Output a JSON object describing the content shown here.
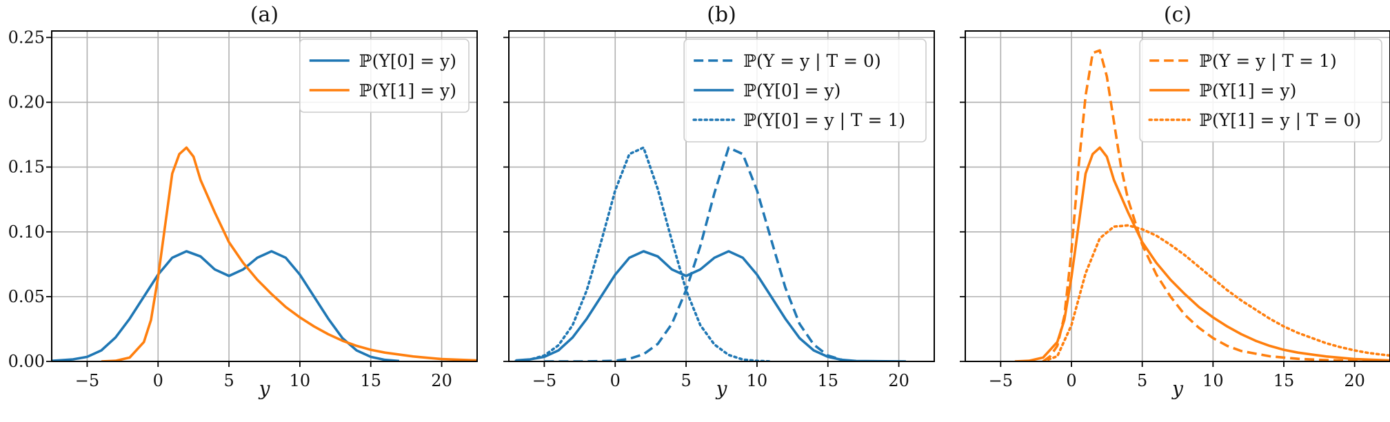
{
  "chart_data": [
    {
      "type": "line",
      "title": "(a)",
      "xlabel": "y",
      "ylabel": "",
      "xlim": [
        -7.5,
        22.5
      ],
      "ylim": [
        0,
        0.255
      ],
      "x_ticks": [
        -5,
        0,
        5,
        10,
        15,
        20
      ],
      "x_tick_labels": [
        "−5",
        "0",
        "5",
        "10",
        "15",
        "20"
      ],
      "y_ticks": [
        0,
        0.05,
        0.1,
        0.15,
        0.2,
        0.25
      ],
      "y_tick_labels": [
        "0.00",
        "0.05",
        "0.10",
        "0.15",
        "0.20",
        "0.25"
      ],
      "grid": true,
      "legend_position": "top-right",
      "series": [
        {
          "name": "ℙ(Y[0] = y)",
          "color": "#1f77b4",
          "style": "solid",
          "x": [
            -7.5,
            -6,
            -5,
            -4,
            -3,
            -2,
            -1,
            0,
            1,
            2,
            3,
            4,
            5,
            6,
            7,
            8,
            9,
            10,
            11,
            12,
            13,
            14,
            15,
            16,
            17
          ],
          "y": [
            0.0004,
            0.0016,
            0.0035,
            0.0085,
            0.0185,
            0.033,
            0.05,
            0.067,
            0.08,
            0.085,
            0.081,
            0.071,
            0.066,
            0.071,
            0.08,
            0.085,
            0.08,
            0.067,
            0.05,
            0.033,
            0.018,
            0.0085,
            0.0035,
            0.0012,
            0.0003
          ]
        },
        {
          "name": "ℙ(Y[1] = y)",
          "color": "#ff7f0e",
          "style": "solid",
          "x": [
            -4,
            -3,
            -2,
            -1,
            -0.5,
            0,
            0.5,
            1,
            1.5,
            2,
            2.5,
            3,
            4,
            5,
            6,
            7,
            8,
            9,
            10,
            11,
            12,
            13,
            14,
            15,
            16,
            18,
            20,
            22.5
          ],
          "y": [
            0,
            0.0005,
            0.003,
            0.015,
            0.032,
            0.065,
            0.105,
            0.145,
            0.16,
            0.165,
            0.158,
            0.14,
            0.115,
            0.092,
            0.076,
            0.063,
            0.052,
            0.042,
            0.034,
            0.027,
            0.021,
            0.016,
            0.012,
            0.009,
            0.0068,
            0.0038,
            0.0018,
            0.0008
          ]
        }
      ]
    },
    {
      "type": "line",
      "title": "(b)",
      "xlabel": "y",
      "ylabel": "",
      "xlim": [
        -7.5,
        22.5
      ],
      "ylim": [
        0,
        0.255
      ],
      "x_ticks": [
        -5,
        0,
        5,
        10,
        15,
        20
      ],
      "x_tick_labels": [
        "−5",
        "0",
        "5",
        "10",
        "15",
        "20"
      ],
      "y_ticks": [
        0,
        0.05,
        0.1,
        0.15,
        0.2,
        0.25
      ],
      "grid": true,
      "legend_position": "top-right",
      "series": [
        {
          "name": "ℙ(Y = y | T = 0)",
          "color": "#1f77b4",
          "style": "dashed",
          "x": [
            -5,
            -2,
            0,
            1,
            2,
            3,
            4,
            5,
            6,
            7,
            8,
            9,
            10,
            11,
            12,
            13,
            14,
            15,
            16
          ],
          "y": [
            0,
            0,
            0.0005,
            0.002,
            0.0055,
            0.0135,
            0.029,
            0.055,
            0.089,
            0.13,
            0.165,
            0.16,
            0.132,
            0.094,
            0.057,
            0.029,
            0.013,
            0.0045,
            0.0012
          ]
        },
        {
          "name": "ℙ(Y[0] = y)",
          "color": "#1f77b4",
          "style": "solid",
          "x": [
            -7,
            -6,
            -5,
            -4,
            -3,
            -2,
            -1,
            0,
            1,
            2,
            3,
            4,
            5,
            6,
            7,
            8,
            9,
            10,
            11,
            12,
            13,
            14,
            15,
            16,
            17,
            20.5
          ],
          "y": [
            0.0008,
            0.0016,
            0.0035,
            0.0085,
            0.0185,
            0.033,
            0.05,
            0.067,
            0.08,
            0.085,
            0.081,
            0.071,
            0.066,
            0.071,
            0.08,
            0.085,
            0.08,
            0.067,
            0.05,
            0.033,
            0.018,
            0.0085,
            0.0035,
            0.0012,
            0.0003,
            0
          ]
        },
        {
          "name": "ℙ(Y[0] = y | T = 1)",
          "color": "#1f77b4",
          "style": "dotted",
          "x": [
            -7,
            -6,
            -5,
            -4,
            -3,
            -2,
            -1,
            0,
            1,
            2,
            3,
            4,
            5,
            6,
            7,
            8,
            9,
            10,
            11
          ],
          "y": [
            0.0005,
            0.0015,
            0.0045,
            0.0125,
            0.028,
            0.055,
            0.092,
            0.132,
            0.16,
            0.165,
            0.133,
            0.093,
            0.055,
            0.028,
            0.013,
            0.005,
            0.0015,
            0.0004,
            0
          ]
        }
      ]
    },
    {
      "type": "line",
      "title": "(c)",
      "xlabel": "y",
      "ylabel": "",
      "xlim": [
        -7.5,
        22.5
      ],
      "ylim": [
        0,
        0.255
      ],
      "x_ticks": [
        -5,
        0,
        5,
        10,
        15,
        20
      ],
      "x_tick_labels": [
        "−5",
        "0",
        "5",
        "10",
        "15",
        "20"
      ],
      "y_ticks": [
        0,
        0.05,
        0.1,
        0.15,
        0.2,
        0.25
      ],
      "grid": true,
      "legend_position": "top-right",
      "series": [
        {
          "name": "ℙ(Y = y | T = 1)",
          "color": "#ff7f0e",
          "style": "dashed",
          "x": [
            -2,
            -1.5,
            -1,
            -0.5,
            0,
            0.5,
            1,
            1.5,
            2,
            2.5,
            3,
            3.5,
            4,
            5,
            6,
            7,
            8,
            9,
            10,
            11,
            12,
            14,
            16,
            18,
            20,
            22.5
          ],
          "y": [
            0,
            0.004,
            0.012,
            0.035,
            0.085,
            0.15,
            0.205,
            0.238,
            0.24,
            0.22,
            0.185,
            0.15,
            0.125,
            0.09,
            0.067,
            0.05,
            0.036,
            0.026,
            0.018,
            0.012,
            0.008,
            0.004,
            0.002,
            0.001,
            0.0005,
            0.0002
          ]
        },
        {
          "name": "ℙ(Y[1] = y)",
          "color": "#ff7f0e",
          "style": "solid",
          "x": [
            -4,
            -3,
            -2,
            -1,
            -0.5,
            0,
            0.5,
            1,
            1.5,
            2,
            2.5,
            3,
            4,
            5,
            6,
            7,
            8,
            9,
            10,
            11,
            12,
            13,
            14,
            15,
            16,
            18,
            20,
            22.5
          ],
          "y": [
            0,
            0.0005,
            0.003,
            0.015,
            0.032,
            0.065,
            0.105,
            0.145,
            0.16,
            0.165,
            0.158,
            0.14,
            0.115,
            0.092,
            0.076,
            0.063,
            0.052,
            0.042,
            0.034,
            0.027,
            0.021,
            0.016,
            0.012,
            0.009,
            0.0068,
            0.0038,
            0.0018,
            0.0008
          ]
        },
        {
          "name": "ℙ(Y[1] = y | T = 0)",
          "color": "#ff7f0e",
          "style": "dotted",
          "x": [
            -2,
            -1,
            0,
            1,
            2,
            3,
            4,
            5,
            6,
            7,
            8,
            9,
            10,
            11,
            12,
            13,
            14,
            15,
            16,
            17,
            18,
            19,
            20,
            21,
            22.5
          ],
          "y": [
            0,
            0.004,
            0.028,
            0.068,
            0.095,
            0.104,
            0.105,
            0.102,
            0.097,
            0.09,
            0.082,
            0.073,
            0.064,
            0.055,
            0.047,
            0.04,
            0.033,
            0.027,
            0.022,
            0.018,
            0.014,
            0.011,
            0.0085,
            0.0065,
            0.0045
          ]
        }
      ]
    }
  ]
}
